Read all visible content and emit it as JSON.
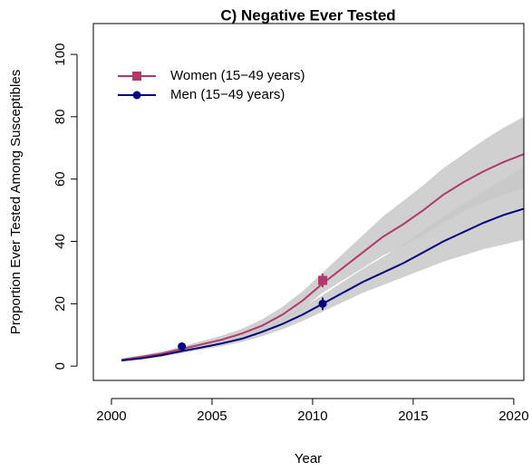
{
  "chart_data": {
    "type": "line",
    "title": "C) Negative Ever Tested",
    "x_label": "Year",
    "y_label": "Proportion Ever Tested Among Susceptibles",
    "x": [
      2000.5,
      2001.5,
      2002.5,
      2003.5,
      2004.5,
      2005.5,
      2006.5,
      2007.5,
      2008.5,
      2009.5,
      2010.5,
      2011.5,
      2012.5,
      2013.5,
      2014.5,
      2015.5,
      2016.5,
      2017.5,
      2018.5,
      2019.5,
      2020.5
    ],
    "series": [
      {
        "name": "Women (15−49 years)",
        "color": "#b03a6a",
        "marker": "square",
        "values": [
          2,
          3,
          4,
          5.5,
          7,
          8.5,
          10.5,
          13,
          16.5,
          21,
          26.5,
          31.5,
          36.5,
          41.5,
          45.5,
          50,
          55,
          59,
          62.5,
          65.5,
          68
        ],
        "lower": [
          1.6,
          2.5,
          3.4,
          4.7,
          6,
          7.3,
          9,
          11.2,
          14.3,
          18.5,
          23.5,
          27.5,
          31.5,
          35.5,
          38.5,
          42,
          46,
          49.5,
          52.5,
          55,
          57
        ],
        "upper": [
          2.4,
          3.5,
          4.7,
          6.3,
          8,
          9.8,
          12,
          15,
          19,
          24,
          30,
          36,
          42,
          48,
          53,
          58,
          63.5,
          68,
          72.5,
          76.5,
          80
        ],
        "points": [
          {
            "x": 2010.5,
            "y": 27.5,
            "err": 2.2
          }
        ]
      },
      {
        "name": "Men (15−49 years)",
        "color": "#000080",
        "marker": "circle",
        "values": [
          1.8,
          2.5,
          3.5,
          4.8,
          6,
          7.3,
          8.8,
          11,
          13.5,
          16.5,
          20,
          23.5,
          27,
          30,
          33,
          36.5,
          40,
          43,
          46,
          48.5,
          50.5
        ],
        "lower": [
          1.5,
          2.1,
          3,
          4.2,
          5.3,
          6.4,
          7.8,
          9.6,
          11.8,
          14.5,
          17.5,
          20.5,
          23.5,
          26,
          28.5,
          31,
          33.5,
          35.5,
          37.5,
          39,
          40.5
        ],
        "upper": [
          2.1,
          2.9,
          4,
          5.4,
          6.7,
          8.2,
          9.9,
          12.4,
          15.3,
          18.8,
          22.8,
          27,
          31.2,
          35,
          39,
          43.5,
          48,
          52,
          56,
          60,
          64
        ],
        "points": [
          {
            "x": 2003.5,
            "y": 6.3,
            "err": 1.2
          },
          {
            "x": 2010.5,
            "y": 20,
            "err": 2
          }
        ]
      }
    ],
    "xlim": [
      1999.1,
      2020.5
    ],
    "ylim": [
      -4.6,
      109.9
    ],
    "xticks": [
      2000,
      2005,
      2010,
      2015,
      2020
    ],
    "yticks": [
      0,
      20,
      40,
      60,
      80,
      100
    ],
    "band_color": "#c8c8c8",
    "legend": "top-left"
  }
}
